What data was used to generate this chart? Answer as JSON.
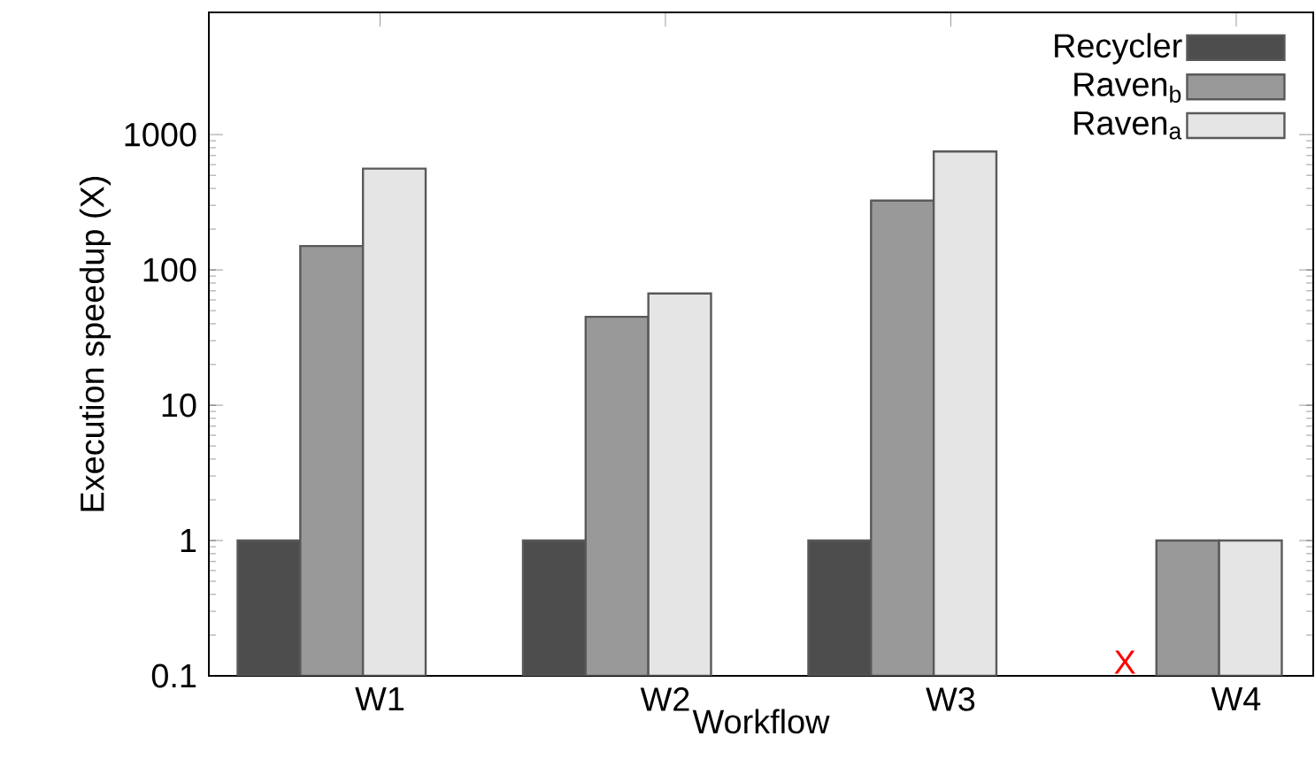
{
  "chart_data": {
    "type": "bar",
    "xlabel": "Workflow",
    "ylabel": "Execution speedup (X)",
    "categories": [
      "W1",
      "W2",
      "W3",
      "W4"
    ],
    "series": [
      {
        "name": "Recycler",
        "color": "#4d4d4d",
        "values": [
          1,
          1,
          1,
          null
        ]
      },
      {
        "name": "Raven$_{b}$",
        "color": "#999999",
        "values": [
          150,
          45,
          325,
          1
        ]
      },
      {
        "name": "Raven$_{a}$",
        "color": "#e5e5e5",
        "values": [
          560,
          67,
          750,
          1
        ]
      }
    ],
    "log": "y",
    "ylim": [
      0.1,
      8000
    ],
    "yticks": [
      0.1,
      1,
      10,
      100,
      1000
    ],
    "legend": "top right",
    "annotations": [
      "X"
    ]
  }
}
